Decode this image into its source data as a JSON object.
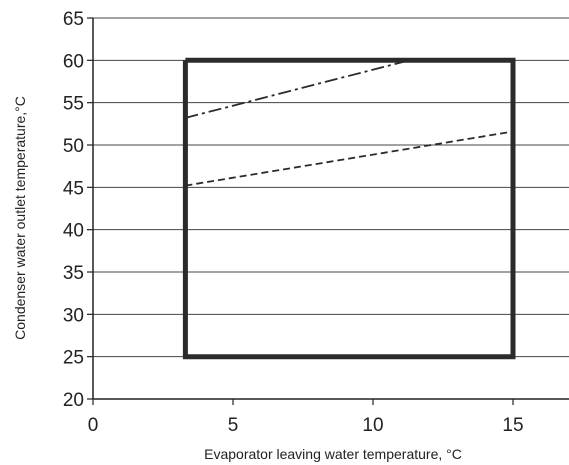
{
  "chart_data": {
    "type": "line",
    "xlabel": "Evaporator leaving water temperature, °C",
    "ylabel": "Condenser water outlet temperature,°C",
    "xlim": [
      0,
      17
    ],
    "ylim": [
      20,
      65
    ],
    "x_ticks": [
      "0",
      "5",
      "10",
      "15"
    ],
    "y_ticks": [
      "20",
      "25",
      "30",
      "35",
      "40",
      "45",
      "50",
      "55",
      "60",
      "65"
    ],
    "grid": "horizontal",
    "legend": "none",
    "series": [
      {
        "style": "solid-thick",
        "color": "#2b2b2b",
        "x": [
          3.3,
          15,
          15,
          3.3,
          3.3
        ],
        "y": [
          60,
          60,
          25,
          25,
          60
        ]
      },
      {
        "style": "dash-dot",
        "color": "#2b2b2b",
        "x": [
          3.3,
          11.3
        ],
        "y": [
          53.2,
          60
        ]
      },
      {
        "style": "dashed",
        "color": "#2b2b2b",
        "x": [
          3.3,
          15
        ],
        "y": [
          45.2,
          51.6
        ]
      }
    ]
  }
}
